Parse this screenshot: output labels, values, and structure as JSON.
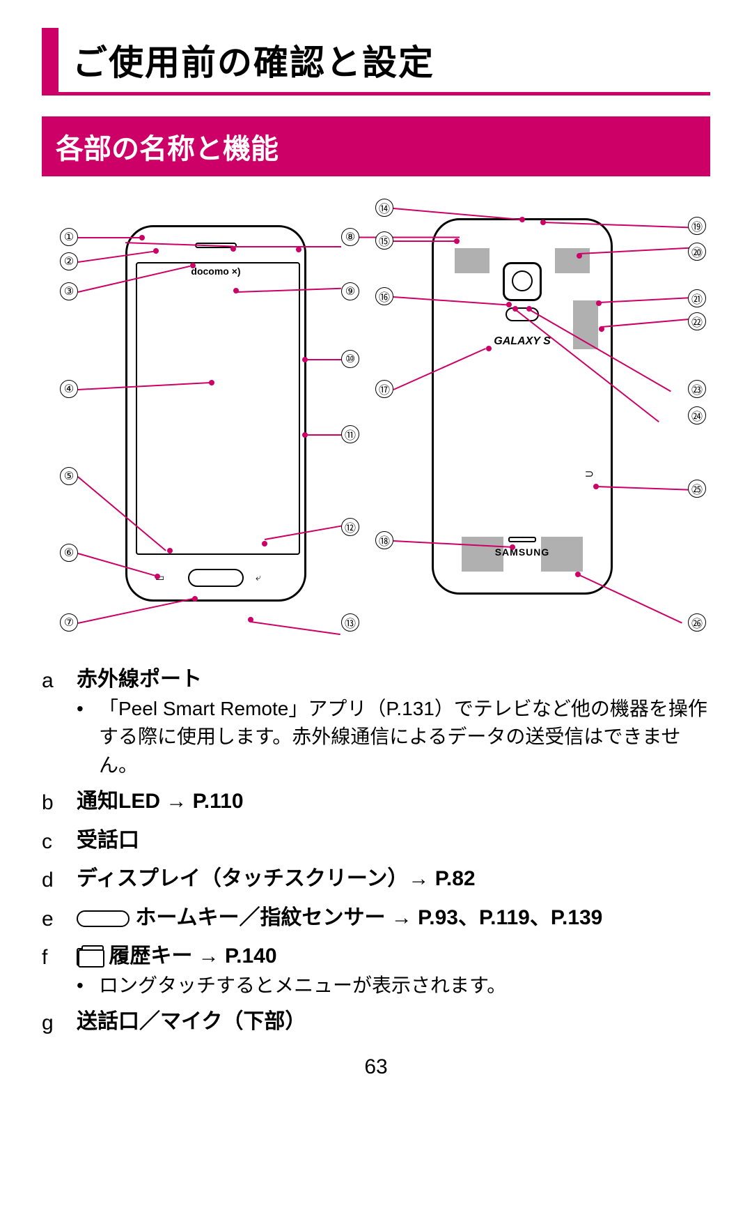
{
  "title": "ご使用前の確認と設定",
  "section": "各部の名称と機能",
  "colors": {
    "accent": "#cc0066"
  },
  "diagram": {
    "front_label": "docomo ×)",
    "back_brand": "GALAXY S",
    "back_maker": "SAMSUNG",
    "callouts_left_numbers": [
      "①",
      "②",
      "③",
      "④",
      "⑤",
      "⑥",
      "⑦"
    ],
    "callouts_right_numbers_front": [
      "⑧",
      "⑨",
      "⑩",
      "⑪",
      "⑫",
      "⑬"
    ],
    "callouts_back_left": [
      "⑭",
      "⑮",
      "⑯",
      "⑰",
      "⑱"
    ],
    "callouts_back_right": [
      "⑲",
      "⑳",
      "㉑",
      "㉒",
      "㉓",
      "㉔",
      "㉕",
      "㉖"
    ]
  },
  "items": [
    {
      "key": "a",
      "title": "赤外線ポート",
      "bullets": [
        "「Peel Smart Remote」アプリ（P.131）でテレビなど他の機器を操作する際に使用します。赤外線通信によるデータの送受信はできません。"
      ]
    },
    {
      "key": "b",
      "title": "通知LED → P.110"
    },
    {
      "key": "c",
      "title": "受話口"
    },
    {
      "key": "d",
      "title": "ディスプレイ（タッチスクリーン）→ P.82"
    },
    {
      "key": "e",
      "icon": "home",
      "title": "ホームキー／指紋センサー → P.93、P.119、P.139"
    },
    {
      "key": "f",
      "icon": "recent",
      "title": "履歴キー → P.140",
      "bullets": [
        "ロングタッチするとメニューが表示されます。"
      ]
    },
    {
      "key": "g",
      "title": "送話口／マイク（下部）"
    }
  ],
  "page": "63"
}
